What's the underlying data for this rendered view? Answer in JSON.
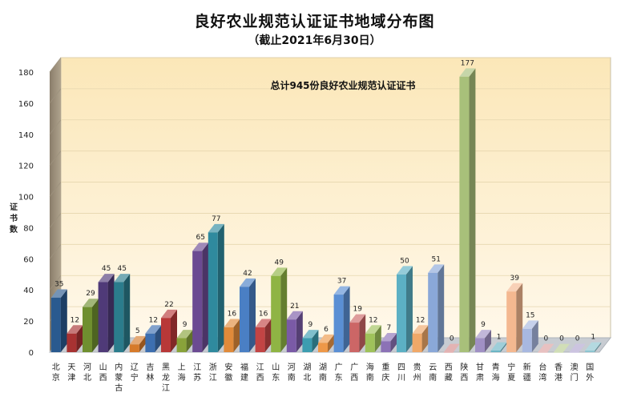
{
  "chart_data": {
    "type": "bar",
    "title": "良好农业规范认证证书地域分布图",
    "subtitle": "（截止2021年6月30日）",
    "ylabel": "证书数",
    "annotation": "总计945份良好农业规范认证证书",
    "ylim": [
      0,
      180
    ],
    "yticks": [
      0,
      20,
      40,
      60,
      80,
      100,
      120,
      140,
      160,
      180
    ],
    "categories": [
      "北京",
      "天津",
      "河北",
      "山西",
      "内蒙古",
      "辽宁",
      "吉林",
      "黑龙江",
      "上海",
      "江苏",
      "浙江",
      "安徽",
      "福建",
      "江西",
      "山东",
      "河南",
      "湖北",
      "湖南",
      "广东",
      "广西",
      "海南",
      "重庆",
      "四川",
      "贵州",
      "云南",
      "西藏",
      "陕西",
      "甘肃",
      "青海",
      "宁夏",
      "新疆",
      "台湾",
      "香港",
      "澳门",
      "国外"
    ],
    "values": [
      35,
      12,
      29,
      45,
      45,
      5,
      12,
      22,
      9,
      65,
      77,
      16,
      42,
      16,
      49,
      21,
      9,
      6,
      37,
      19,
      12,
      7,
      50,
      12,
      51,
      0,
      177,
      9,
      1,
      39,
      15,
      0,
      0,
      0,
      1
    ],
    "colors": [
      "#2a5a8f",
      "#a83232",
      "#6f8f2f",
      "#4f3a78",
      "#2b7c8c",
      "#d67a2a",
      "#3d6fb0",
      "#b83838",
      "#89a33a",
      "#6b4a92",
      "#2f8a9e",
      "#e08a3a",
      "#4a7fc4",
      "#c24444",
      "#8fb444",
      "#7a5aa6",
      "#3c9db0",
      "#ee9848",
      "#5a8fd4",
      "#cc6666",
      "#9fc25a",
      "#8c72b6",
      "#5cb0c4",
      "#f0a868",
      "#8aa8d8",
      "#d48a8a",
      "#a8c07a",
      "#a090c4",
      "#6ab4c4",
      "#f4b890",
      "#a8b8e0",
      "#dca0a0",
      "#b8cc90",
      "#b0a4d0",
      "#8cc4d0"
    ]
  }
}
